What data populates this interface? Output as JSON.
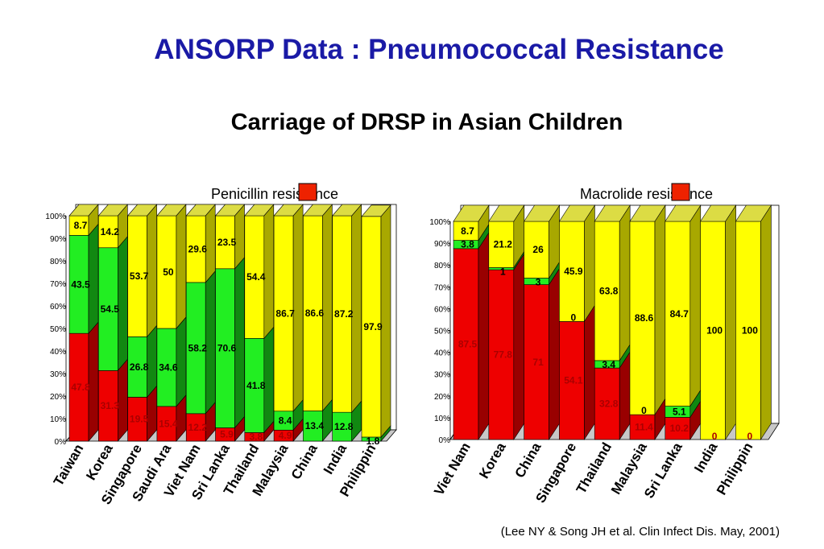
{
  "title": "ANSORP Data : Pneumococcal Resistance",
  "subtitle": "Carriage of DRSP in Asian Children",
  "citation": "(Lee NY & Song JH et al.  Clin Infect Dis.  May, 2001)",
  "colors": {
    "red": "#ee0000",
    "green": "#22ee22",
    "yellow": "#ffff00",
    "legend_swatch": "#ee2200"
  },
  "chart_data": [
    {
      "type": "bar",
      "stacked": true,
      "legend": "Penicillin resistance",
      "legend_position": "top-center",
      "y_ticks": [
        "0%",
        "10%",
        "20%",
        "30%",
        "40%",
        "50%",
        "60%",
        "70%",
        "80%",
        "90%",
        "100%"
      ],
      "ylim": [
        0,
        100
      ],
      "categories": [
        "Taiwan",
        "Korea",
        "Singapore",
        "Saudi Ara",
        "Viet Nam",
        "Sri Lanka",
        "Thailand",
        "Malaysia",
        "China",
        "India",
        "Philippin"
      ],
      "series": [
        {
          "color": "red",
          "values": [
            47.8,
            31.3,
            19.5,
            15.4,
            12.2,
            5.9,
            3.8,
            4.9,
            0,
            0,
            0
          ],
          "labels": [
            "47.8",
            "31.3",
            "19.5",
            "15.4",
            "12.2",
            "5.9",
            "3.8",
            "4.9",
            "",
            "",
            ""
          ]
        },
        {
          "color": "green",
          "values": [
            43.5,
            54.5,
            26.8,
            34.6,
            58.2,
            70.6,
            41.8,
            8.4,
            13.4,
            12.8,
            1.8
          ],
          "labels": [
            "43.5",
            "54.5",
            "26.8",
            "34.6",
            "58.2",
            "70.6",
            "41.8",
            "8.4",
            "13.4",
            "12.8",
            "1.8"
          ]
        },
        {
          "color": "yellow",
          "values": [
            8.7,
            14.2,
            53.7,
            50,
            29.6,
            23.5,
            54.4,
            86.7,
            86.6,
            87.2,
            97.9
          ],
          "labels": [
            "8.7",
            "14.2",
            "53.7",
            "50",
            "29.6",
            "23.5",
            "54.4",
            "86.7",
            "86.6",
            "87.2",
            "97.9"
          ]
        }
      ]
    },
    {
      "type": "bar",
      "stacked": true,
      "legend": "Macrolide resistance",
      "legend_position": "top-center",
      "y_ticks": [
        "0%",
        "10%",
        "20%",
        "30%",
        "40%",
        "50%",
        "60%",
        "70%",
        "80%",
        "90%",
        "100%"
      ],
      "ylim": [
        0,
        100
      ],
      "categories": [
        "Viet Nam",
        "Korea",
        "China",
        "Singapore",
        "Thailand",
        "Malaysia",
        "Sri Lanka",
        "India",
        "Philippin"
      ],
      "series": [
        {
          "color": "red",
          "values": [
            87.5,
            77.8,
            71,
            54.1,
            32.8,
            11.4,
            10.2,
            0,
            0
          ],
          "labels": [
            "87.5",
            "77.8",
            "71",
            "54.1",
            "32.8",
            "11.4",
            "10.2",
            "0",
            "0"
          ]
        },
        {
          "color": "green",
          "values": [
            3.8,
            1,
            3,
            0,
            3.4,
            0,
            5.1,
            0,
            0
          ],
          "labels": [
            "3.8",
            "1",
            "3",
            "0",
            "3.4",
            "0",
            "5.1",
            "",
            ""
          ]
        },
        {
          "color": "yellow",
          "values": [
            8.7,
            21.2,
            26,
            45.9,
            63.8,
            88.6,
            84.7,
            100,
            100
          ],
          "labels": [
            "8.7",
            "21.2",
            "26",
            "45.9",
            "63.8",
            "88.6",
            "84.7",
            "100",
            "100"
          ]
        }
      ]
    }
  ]
}
